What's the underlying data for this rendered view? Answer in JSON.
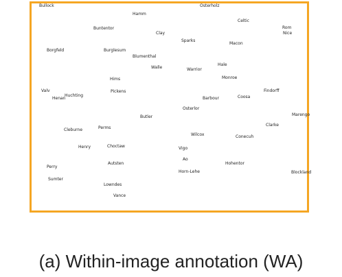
{
  "figure": {
    "caption": "(a)  Within-image annotation (WA)",
    "frame_color": "#f5a623",
    "labels": [
      "Bullock",
      "Osterholz",
      "Hamm",
      "Celtic",
      "Buntentor",
      "Clay",
      "Rom",
      "Nice",
      "Sparks",
      "Macon",
      "Borgfeld",
      "Burglesum",
      "Blumenthal",
      "Hale",
      "Walle",
      "Warrior",
      "Monroe",
      "Hims",
      "Findorff",
      "Valv",
      "Huchting",
      "Pickens",
      "Henan",
      "Barbour",
      "Coosa",
      "Osterlor",
      "Marengo",
      "Butler",
      "Clarke",
      "Cleburne",
      "Perms",
      "Wilcox",
      "Conecuh",
      "Henry",
      "Choctaw",
      "Vigo",
      "Ao",
      "Hohentor",
      "Perry",
      "Autsten",
      "Horn-Lehe",
      "Blockland",
      "Sumter",
      "Lowndes",
      "Vance"
    ]
  }
}
